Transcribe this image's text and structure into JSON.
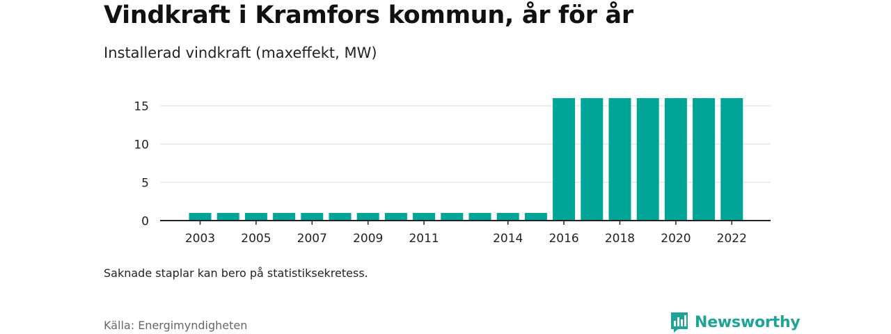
{
  "header": {
    "title": "Vindkraft i Kramfors kommun, år för år",
    "subtitle": "Installerad vindkraft (maxeffekt, MW)"
  },
  "note": "Saknade staplar kan bero på statistiksekretess.",
  "source": "Källa: Energimyndigheten",
  "brand": {
    "name": "Newsworthy",
    "icon": "newsworthy-logo-icon"
  },
  "colors": {
    "bar": "#00a597",
    "grid": "#d9d9d9",
    "axis": "#222222",
    "brand": "#1fa396"
  },
  "chart_data": {
    "type": "bar",
    "categories": [
      "2003",
      "2004",
      "2005",
      "2006",
      "2007",
      "2008",
      "2009",
      "2010",
      "2011",
      "2012",
      "2013",
      "2014",
      "2015",
      "2016",
      "2017",
      "2018",
      "2019",
      "2020",
      "2021",
      "2022"
    ],
    "values": [
      1,
      1,
      1,
      1,
      1,
      1,
      1,
      1,
      1,
      1,
      1,
      1,
      1,
      16,
      16,
      16,
      16,
      16,
      16,
      16
    ],
    "x_tick_labels": [
      "2003",
      "2005",
      "2007",
      "2009",
      "2011",
      "2014",
      "2016",
      "2018",
      "2020",
      "2022"
    ],
    "y_ticks": [
      0,
      5,
      10,
      15
    ],
    "ylim": [
      0,
      17
    ],
    "grid": true,
    "xlabel": "",
    "ylabel": ""
  }
}
